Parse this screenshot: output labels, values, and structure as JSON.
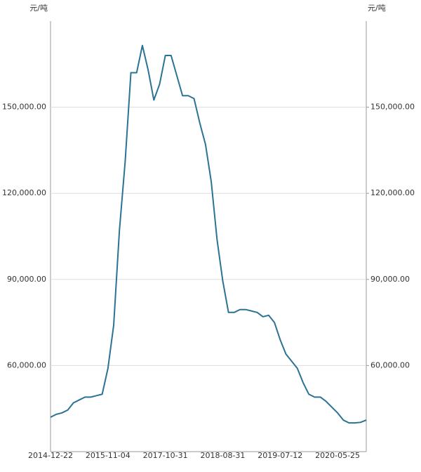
{
  "chart_data": {
    "type": "line",
    "ylabel": "元/吨",
    "y2label": "元/吨",
    "categories": [
      "2014-12-22",
      null,
      null,
      null,
      null,
      null,
      null,
      null,
      null,
      null,
      "2015-11-04",
      null,
      null,
      null,
      null,
      null,
      null,
      null,
      null,
      null,
      "2017-10-31",
      null,
      null,
      null,
      null,
      null,
      null,
      null,
      null,
      null,
      "2018-08-31",
      null,
      null,
      null,
      null,
      null,
      null,
      null,
      null,
      null,
      "2019-07-12",
      null,
      null,
      null,
      null,
      null,
      null,
      null,
      null,
      null,
      "2020-05-25",
      null,
      null,
      null,
      null,
      null
    ],
    "series": [
      {
        "color": "#2b7394",
        "values": [
          42000,
          43000,
          43500,
          44500,
          47000,
          48000,
          49000,
          49000,
          49500,
          50000,
          59000,
          74000,
          107000,
          131000,
          162000,
          162000,
          171500,
          163000,
          152500,
          158000,
          168000,
          168000,
          161000,
          154000,
          154000,
          153000,
          144500,
          137000,
          124000,
          104000,
          89500,
          78500,
          78500,
          79500,
          79500,
          79000,
          78500,
          77000,
          77500,
          75000,
          69000,
          64000,
          61500,
          59000,
          54000,
          50000,
          49000,
          49000,
          47500,
          45500,
          43500,
          41000,
          40000,
          40000,
          40200,
          41000
        ]
      }
    ],
    "ylim": [
      30000,
      180000
    ],
    "yticks": [
      {
        "value": 60000,
        "label": "60,000.00"
      },
      {
        "value": 90000,
        "label": "90,000.00"
      },
      {
        "value": 120000,
        "label": "120,000.00"
      },
      {
        "value": 150000,
        "label": "150,000.00"
      }
    ],
    "y2lim": [
      30000,
      180000
    ],
    "y2ticks": [
      {
        "value": 60000,
        "label": "60,000.00"
      },
      {
        "value": 90000,
        "label": "90,000.00"
      },
      {
        "value": 120000,
        "label": "120,000.00"
      },
      {
        "value": 150000,
        "label": "150,000.00"
      }
    ],
    "grid": true
  }
}
